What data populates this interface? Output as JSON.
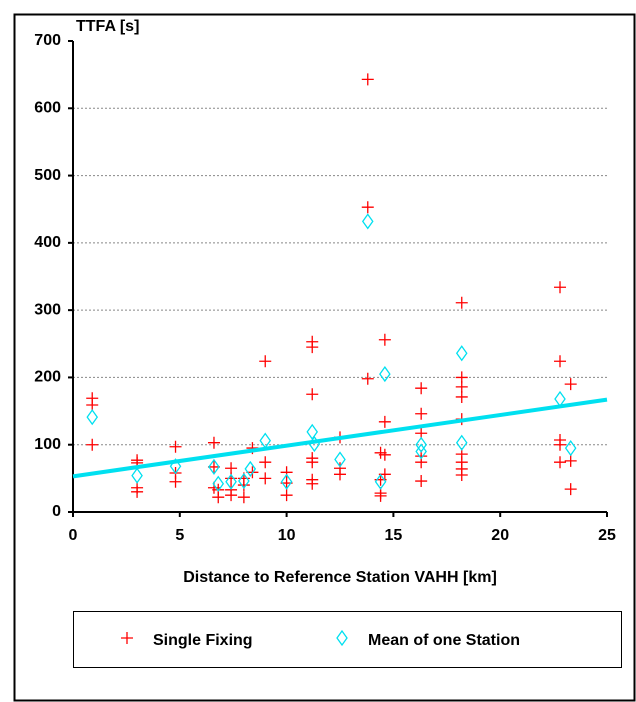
{
  "chart_data": {
    "type": "scatter",
    "y_label": "TTFA [s]",
    "x_label": "Distance to Reference Station VAHH [km]",
    "xlim": [
      0,
      25
    ],
    "ylim": [
      0,
      700
    ],
    "xticks": [
      0,
      5,
      10,
      15,
      20,
      25
    ],
    "yticks": [
      0,
      100,
      200,
      300,
      400,
      500,
      600,
      700
    ],
    "grid": true,
    "legend": "bottom",
    "series": [
      {
        "name": "Single Fixing",
        "color": "#ff0000",
        "marker": "plus",
        "x": [
          0.9,
          0.9,
          0.9,
          3,
          3,
          3,
          3,
          4.8,
          4.8,
          4.8,
          6.6,
          6.6,
          6.6,
          6.8,
          6.8,
          7.4,
          7.4,
          7.4,
          7.4,
          8,
          8,
          8,
          8.4,
          8.4,
          9,
          9,
          9,
          10,
          10,
          10,
          11.2,
          11.2,
          11.2,
          11.2,
          11.2,
          11.2,
          11.2,
          12.5,
          12.5,
          12.5,
          13.8,
          13.8,
          13.8,
          14.4,
          14.4,
          14.4,
          14.4,
          14.6,
          14.6,
          14.6,
          14.6,
          16.3,
          16.3,
          16.3,
          16.3,
          16.3,
          16.3,
          18.2,
          18.2,
          18.2,
          18.2,
          18.2,
          18.2,
          18.2,
          18.2,
          18.2,
          22.8,
          22.8,
          22.8,
          22.8,
          22.8,
          23.3,
          23.3,
          23.3
        ],
        "values": [
          169,
          159,
          100,
          77,
          73,
          36,
          30,
          97,
          58,
          45,
          103,
          67,
          36,
          33,
          22,
          65,
          50,
          33,
          25,
          22,
          40,
          50,
          95,
          59,
          224,
          74,
          50,
          59,
          25,
          43,
          253,
          245,
          175,
          80,
          74,
          48,
          42,
          111,
          65,
          56,
          643,
          453,
          198,
          88,
          48,
          28,
          24,
          256,
          134,
          85,
          56,
          184,
          146,
          117,
          83,
          74,
          46,
          311,
          200,
          186,
          171,
          138,
          86,
          74,
          64,
          55,
          334,
          224,
          107,
          100,
          74,
          190,
          76,
          34
        ]
      },
      {
        "name": "Mean of one Station",
        "color": "#00e0f0",
        "marker": "diamond",
        "x": [
          0.9,
          3,
          4.8,
          6.6,
          6.8,
          7.4,
          8,
          8.3,
          9,
          10,
          11.2,
          11.3,
          12.5,
          13.8,
          14.4,
          14.6,
          16.3,
          16.3,
          18.2,
          18.2,
          22.8,
          23.3
        ],
        "values": [
          141,
          54,
          68,
          67,
          42,
          45,
          46,
          64,
          106,
          45,
          119,
          101,
          78,
          432,
          45,
          205,
          100,
          90,
          236,
          103,
          168,
          95
        ]
      }
    ],
    "trend_line": {
      "color": "#00e0f0",
      "x": [
        0,
        25
      ],
      "y": [
        53,
        167
      ]
    }
  }
}
